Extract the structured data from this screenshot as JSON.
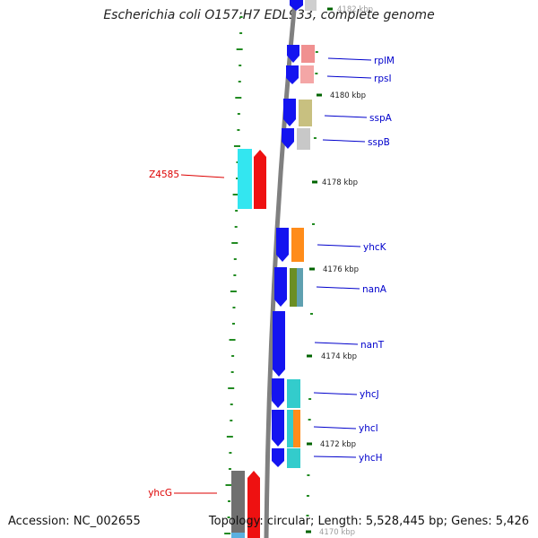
{
  "title": "Escherichia coli O157:H7 EDL933, complete genome",
  "footer": {
    "accession": "Accession: NC_002655",
    "summary": "Topology: circular; Length: 5,528,445 bp; Genes: 5,426"
  },
  "colors": {
    "backbone": "#808080",
    "forward_strand": "#0000ee",
    "reverse_strand": "#ff0000",
    "forward_label": "#0000cc",
    "reverse_label": "#dd0000",
    "gc_tick": "#228b22",
    "kbp_tick": "#006400"
  },
  "position_ticks": [
    {
      "label": "4182 kbp"
    },
    {
      "label": "4180 kbp"
    },
    {
      "label": "4178 kbp"
    },
    {
      "label": "4176 kbp"
    },
    {
      "label": "4174 kbp"
    },
    {
      "label": "4172 kbp"
    },
    {
      "label": "4170 kbp"
    }
  ],
  "genes": [
    {
      "name": "rplM",
      "strand": "forward"
    },
    {
      "name": "rpsI",
      "strand": "forward"
    },
    {
      "name": "sspA",
      "strand": "forward"
    },
    {
      "name": "sspB",
      "strand": "forward"
    },
    {
      "name": "Z4585",
      "strand": "reverse"
    },
    {
      "name": "yhcK",
      "strand": "forward"
    },
    {
      "name": "nanA",
      "strand": "forward"
    },
    {
      "name": "nanT",
      "strand": "forward"
    },
    {
      "name": "yhcJ",
      "strand": "forward"
    },
    {
      "name": "yhcI",
      "strand": "forward"
    },
    {
      "name": "yhcH",
      "strand": "forward"
    },
    {
      "name": "yhcG",
      "strand": "reverse"
    }
  ]
}
